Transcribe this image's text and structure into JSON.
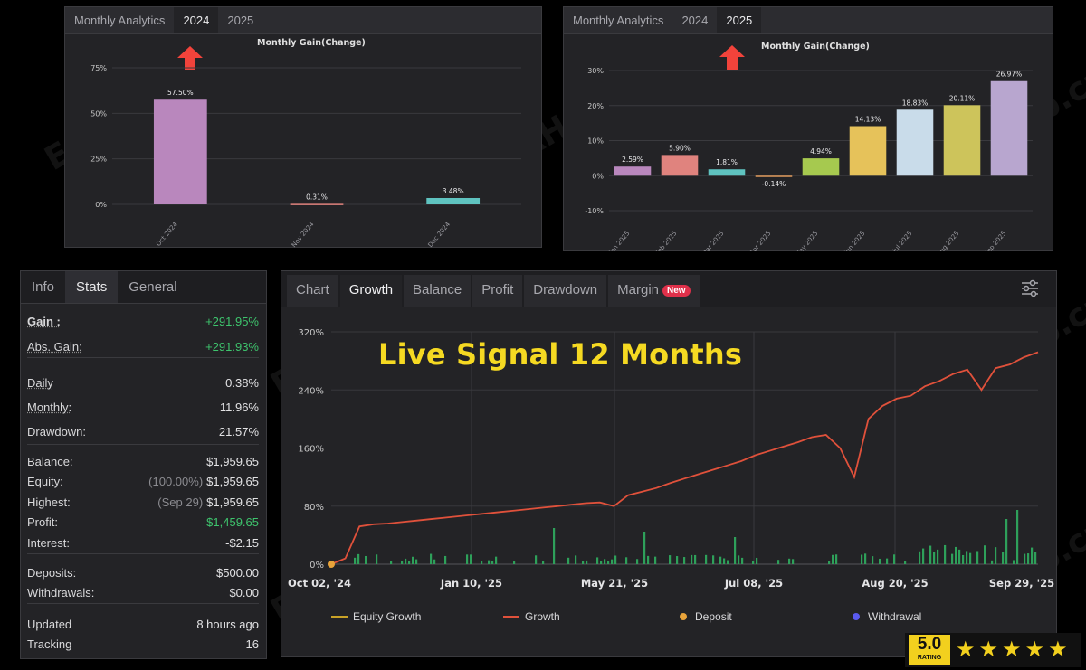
{
  "analytics_2024": {
    "title": "Monthly Analytics",
    "tabs": [
      "2024",
      "2025"
    ],
    "active_tab": "2024"
  },
  "analytics_2025": {
    "title": "Monthly Analytics",
    "tabs": [
      "2024",
      "2025"
    ],
    "active_tab": "2025"
  },
  "stats": {
    "tabs": [
      "Info",
      "Stats",
      "General"
    ],
    "active_tab": "Stats",
    "gain_label": "Gain :",
    "gain_value": "+291.95%",
    "abs_gain_label": "Abs. Gain:",
    "abs_gain_value": "+291.93%",
    "daily_label": "Daily",
    "daily_value": "0.38%",
    "monthly_label": "Monthly:",
    "monthly_value": "11.96%",
    "drawdown_label": "Drawdown:",
    "drawdown_value": "21.57%",
    "balance_label": "Balance:",
    "balance_value": "$1,959.65",
    "equity_label": "Equity:",
    "equity_note": "(100.00%)",
    "equity_value": "$1,959.65",
    "highest_label": "Highest:",
    "highest_note": "(Sep 29)",
    "highest_value": "$1,959.65",
    "profit_label": "Profit:",
    "profit_value": "$1,459.65",
    "interest_label": "Interest:",
    "interest_value": "-$2.15",
    "deposits_label": "Deposits:",
    "deposits_value": "$500.00",
    "withdrawals_label": "Withdrawals:",
    "withdrawals_value": "$0.00",
    "updated_label": "Updated",
    "updated_value": "8 hours ago",
    "tracking_label": "Tracking",
    "tracking_value": "16"
  },
  "growth": {
    "tabs": [
      "Chart",
      "Growth",
      "Balance",
      "Profit",
      "Drawdown",
      "Margin"
    ],
    "active_tab": "Growth",
    "new_badge": "New",
    "overlay_title": "Live Signal 12 Months",
    "legend": [
      "Equity Growth",
      "Growth",
      "Deposit",
      "Withdrawal"
    ]
  },
  "rating": {
    "value": "5.0",
    "caption": "RATING",
    "stars": 5,
    "star_glyph": "★"
  },
  "watermark": "EAHub.cn",
  "colors": {
    "accent_green": "#3ec46d",
    "growth_line": "#e0513b",
    "equity_line": "#c9a227",
    "deposit_dot": "#e8a33a",
    "withdrawal_dot": "#5a5af0",
    "badge": "#e0304a",
    "rating_yellow": "#f2d01e"
  },
  "chart_data": [
    {
      "type": "bar",
      "title": "Monthly Gain(Change)",
      "categories": [
        "Oct 2024",
        "Nov 2024",
        "Dec 2024"
      ],
      "values": [
        57.5,
        0.31,
        3.48
      ],
      "labels": [
        "57.50%",
        "0.31%",
        "3.48%"
      ],
      "colors": [
        "#b987bd",
        "#e0837e",
        "#5fc3c0"
      ],
      "yticks": [
        "0%",
        "25%",
        "50%",
        "75%"
      ],
      "ylim": [
        0,
        75
      ]
    },
    {
      "type": "bar",
      "title": "Monthly Gain(Change)",
      "categories": [
        "Jan 2025",
        "Feb 2025",
        "Mar 2025",
        "Apr 2025",
        "May 2025",
        "Jun 2025",
        "Jul 2025",
        "Aug 2025",
        "Sep 2025"
      ],
      "values": [
        2.59,
        5.9,
        1.81,
        -0.14,
        4.94,
        14.13,
        18.83,
        20.11,
        26.97
      ],
      "labels": [
        "2.59%",
        "5.90%",
        "1.81%",
        "-0.14%",
        "4.94%",
        "14.13%",
        "18.83%",
        "20.11%",
        "26.97%"
      ],
      "colors": [
        "#b987bd",
        "#e0837e",
        "#5fc3c0",
        "#e09a5b",
        "#a6c94f",
        "#e6c25a",
        "#c9dcea",
        "#cdc45b",
        "#b8a6cf"
      ],
      "yticks": [
        "-10%",
        "0%",
        "10%",
        "20%",
        "30%"
      ],
      "ylim": [
        -10,
        30
      ]
    },
    {
      "type": "line",
      "series": [
        {
          "name": "Growth",
          "values": [
            0,
            8,
            52,
            55,
            56,
            58,
            60,
            62,
            64,
            66,
            68,
            70,
            72,
            74,
            76,
            78,
            80,
            82,
            84,
            85,
            80,
            95,
            100,
            105,
            112,
            118,
            124,
            130,
            136,
            142,
            150,
            156,
            162,
            168,
            175,
            178,
            160,
            120,
            200,
            218,
            228,
            232,
            245,
            252,
            262,
            268,
            240,
            270,
            275,
            285,
            292
          ]
        }
      ],
      "x_ticks": [
        "Oct 02, '24",
        "Jan 10, '25",
        "May 21, '25",
        "Jul 08, '25",
        "Aug 20, '25",
        "Sep 29, '25"
      ],
      "yticks": [
        "0%",
        "80%",
        "160%",
        "240%",
        "320%"
      ],
      "ylim": [
        0,
        320
      ]
    }
  ]
}
